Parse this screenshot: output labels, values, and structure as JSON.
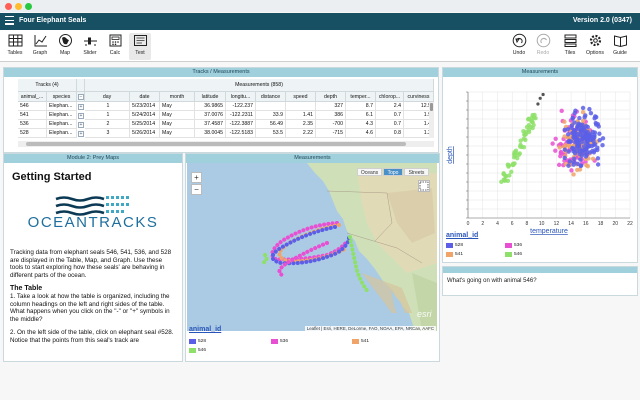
{
  "window": {
    "title": "Four Elephant Seals",
    "version": "Version 2.0 (0347)"
  },
  "toolbar": {
    "left": [
      {
        "label": "Tables",
        "icon": "table-icon"
      },
      {
        "label": "Graph",
        "icon": "graph-icon"
      },
      {
        "label": "Map",
        "icon": "map-icon"
      },
      {
        "label": "Slider",
        "icon": "slider-icon"
      },
      {
        "label": "Calc",
        "icon": "calculator-icon"
      },
      {
        "label": "Text",
        "icon": "text-icon"
      }
    ],
    "right": [
      {
        "label": "Undo",
        "icon": "undo-icon"
      },
      {
        "label": "Redo",
        "icon": "redo-icon"
      },
      {
        "label": "Tiles",
        "icon": "tiles-icon"
      },
      {
        "label": "Options",
        "icon": "gear-icon"
      },
      {
        "label": "Guide",
        "icon": "guide-icon"
      }
    ]
  },
  "table_tile": {
    "title": "Tracks / Measurements",
    "group_left": "Tracks (4)",
    "group_right": "Measurements (858)",
    "left_columns": [
      "animal_...",
      "species"
    ],
    "right_columns": [
      "day",
      "date",
      "month",
      "latitude",
      "longitu...",
      "distance",
      "speed",
      "depth",
      "temper...",
      "chlorop...",
      "curviness"
    ],
    "rows": [
      {
        "animal": "546",
        "species": "Elephan...",
        "day": "1",
        "date": "5/23/2014",
        "month": "May",
        "latitude": "36.9865",
        "longitude": "-122.237",
        "distance": "",
        "speed": "",
        "depth": "327",
        "temperature": "8.7",
        "chlorophyll": "2.4",
        "curviness": "12.5"
      },
      {
        "animal": "541",
        "species": "Elephan...",
        "day": "1",
        "date": "5/24/2014",
        "month": "May",
        "latitude": "37.0076",
        "longitude": "-122.2311",
        "distance": "33.9",
        "speed": "1.41",
        "depth": "386",
        "temperature": "6.1",
        "chlorophyll": "0.7",
        "curviness": "1.9"
      },
      {
        "animal": "536",
        "species": "Elephan...",
        "day": "2",
        "date": "5/25/2014",
        "month": "May",
        "latitude": "37.4587",
        "longitude": "-122.3887",
        "distance": "56.49",
        "speed": "2.35",
        "depth": "-700",
        "temperature": "4.3",
        "chlorophyll": "0.7",
        "curviness": "1.4"
      },
      {
        "animal": "528",
        "species": "Elephan...",
        "day": "3",
        "date": "5/26/2014",
        "month": "May",
        "latitude": "38.0045",
        "longitude": "-122.5183",
        "distance": "53.5",
        "speed": "2.22",
        "depth": "-715",
        "temperature": "4.6",
        "chlorophyll": "0.8",
        "curviness": "1.2"
      }
    ]
  },
  "doc_tile": {
    "title": "Module 2: Prey Maps",
    "heading": "Getting Started",
    "logo_text": "OCEANTRACKS",
    "para1": "Tracking data from elephant seals 546, 541, 536, and 528 are displayed in the Table, Map, and Graph. Use these tools to start exploring how these seals' are behaving in different parts of the ocean.",
    "section": "The Table",
    "para2": "1. Take a look at how the table is organized, including the column headings on the left and right sides of the table. What happens when you click on the \"-\" or \"+\" symbols in the middle?",
    "para3": "2. On the left side of the table, click on elephant seal #528. Notice that the points from this seal's track are"
  },
  "map_tile": {
    "title": "Measurements",
    "zoom_in": "+",
    "zoom_out": "−",
    "tabs": [
      "Oceans",
      "Topo",
      "Streets"
    ],
    "selected_tab": "Topo",
    "attribution": "Leaflet | Esri, HERE, DeLorme, FAO, NOAA, EPA, NRCan, AAFC",
    "esri": "esri",
    "legend_title": "animal_id",
    "legend": [
      {
        "label": "528",
        "color": "#5b5fe8"
      },
      {
        "label": "536",
        "color": "#e84fd2"
      },
      {
        "label": "541",
        "color": "#f0a46a"
      },
      {
        "label": "546",
        "color": "#8ee06a"
      }
    ]
  },
  "graph_tile": {
    "title": "Measurements",
    "chart_data": {
      "type": "scatter",
      "xlabel": "temperature",
      "ylabel": "depth",
      "xlim": [
        0,
        22
      ],
      "x_ticks": [
        "0",
        "2",
        "4",
        "6",
        "8",
        "10",
        "12",
        "14",
        "16",
        "18",
        "20",
        "22"
      ],
      "ylim": [
        -1000,
        0
      ],
      "legend_title": "animal_id",
      "series": [
        {
          "name": "528",
          "color": "#5b5fe8"
        },
        {
          "name": "536",
          "color": "#e84fd2"
        },
        {
          "name": "541",
          "color": "#f0a46a"
        },
        {
          "name": "546",
          "color": "#8ee06a"
        }
      ]
    }
  },
  "text_tile": {
    "text": "What's going on with animal 546?"
  }
}
